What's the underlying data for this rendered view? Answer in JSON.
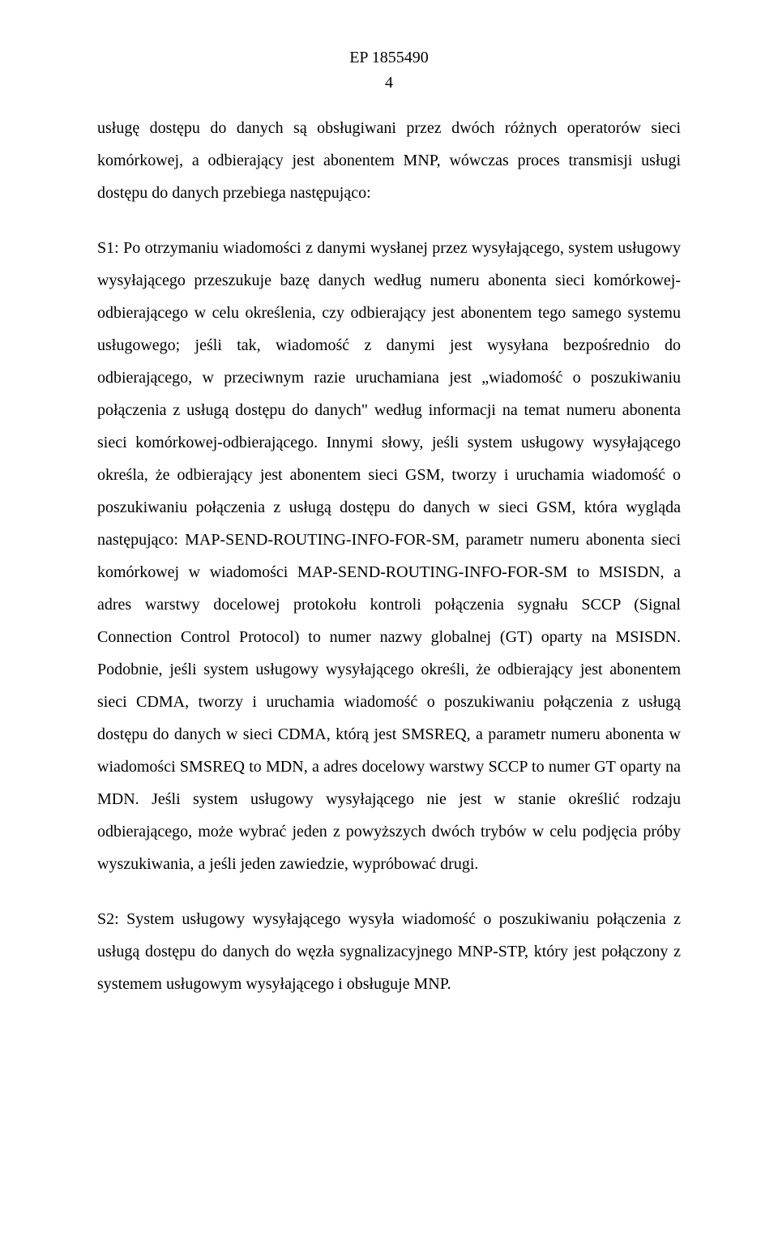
{
  "header": {
    "doc_id": "EP 1855490",
    "page_number": "4"
  },
  "paragraphs": {
    "p1": "usługę dostępu do danych są obsługiwani przez dwóch różnych operatorów sieci komórkowej, a odbierający jest abonentem MNP, wówczas proces transmisji usługi dostępu do danych przebiega następująco:",
    "p2": "S1: Po otrzymaniu wiadomości z danymi wysłanej przez wysyłającego, system usługowy wysyłającego przeszukuje bazę danych według numeru abonenta sieci komórkowej-odbierającego w celu określenia, czy odbierający jest abonentem tego samego systemu usługowego; jeśli tak, wiadomość z danymi jest wysyłana bezpośrednio do odbierającego, w przeciwnym razie uruchamiana jest „wiadomość o poszukiwaniu połączenia z usługą dostępu do danych\" według informacji na temat numeru abonenta sieci komórkowej-odbierającego. Innymi słowy, jeśli system usługowy wysyłającego określa, że odbierający jest abonentem sieci GSM, tworzy i uruchamia wiadomość o poszukiwaniu połączenia z usługą dostępu do danych w sieci GSM, która wygląda następująco: MAP-SEND-ROUTING-INFO-FOR-SM, parametr numeru abonenta sieci komórkowej w wiadomości MAP-SEND-ROUTING-INFO-FOR-SM to MSISDN, a adres warstwy docelowej protokołu kontroli połączenia sygnału SCCP (Signal Connection Control Protocol) to numer nazwy globalnej (GT) oparty na MSISDN. Podobnie, jeśli system usługowy wysyłającego określi, że odbierający jest abonentem sieci CDMA, tworzy i uruchamia wiadomość o poszukiwaniu połączenia z usługą dostępu do danych w sieci CDMA, którą jest SMSREQ, a parametr numeru abonenta w wiadomości SMSREQ to MDN, a adres docelowy warstwy SCCP to numer GT oparty na MDN. Jeśli system usługowy wysyłającego nie jest w stanie określić rodzaju odbierającego, może wybrać jeden z powyższych dwóch trybów w celu podjęcia próby wyszukiwania, a jeśli jeden zawiedzie, wypróbować drugi.",
    "p3": "S2: System usługowy wysyłającego wysyła wiadomość o poszukiwaniu połączenia z usługą dostępu do danych do węzła sygnalizacyjnego MNP-STP, który jest połączony z systemem usługowym wysyłającego i obsługuje MNP."
  }
}
